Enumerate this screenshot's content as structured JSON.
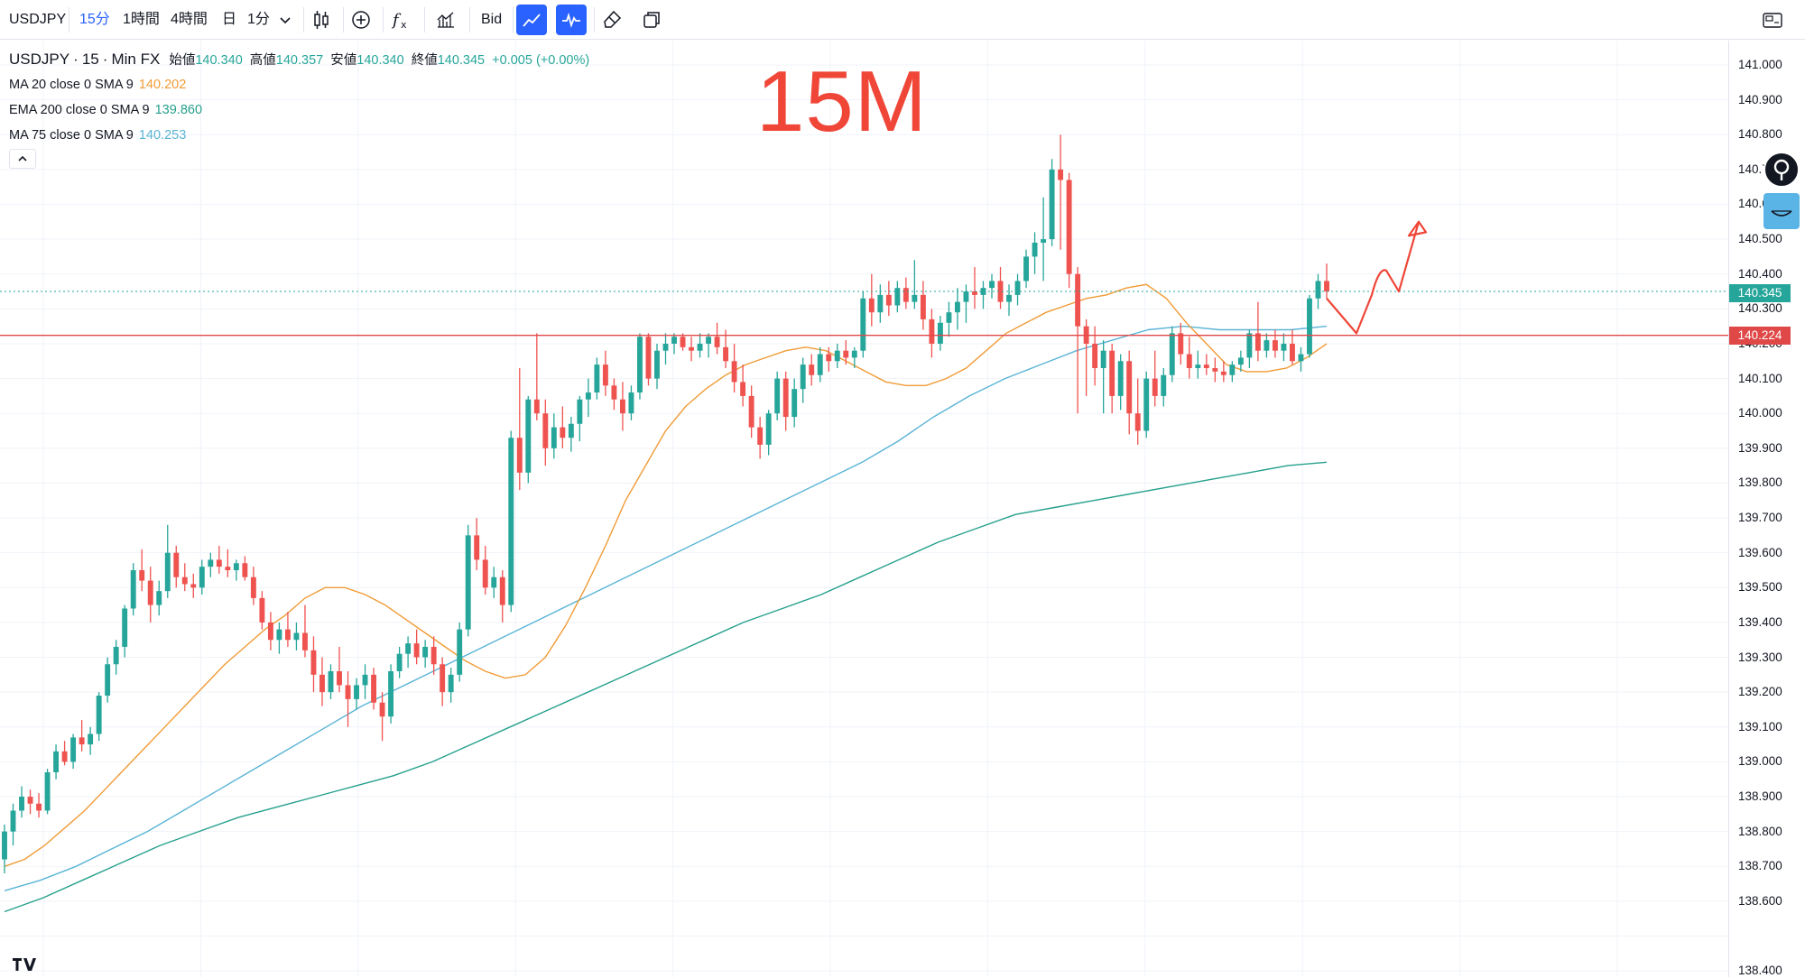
{
  "toolbar": {
    "symbol": "USDJPY",
    "intervals": [
      "15分",
      "1時間",
      "4時間",
      "日",
      "1分"
    ],
    "active_interval": "15分",
    "bid_label": "Bid"
  },
  "legend": {
    "symbol": "USDJPY",
    "timeframe": "15",
    "source": "Min FX",
    "open_label": "始値",
    "open": "140.340",
    "high_label": "高値",
    "high": "140.357",
    "low_label": "安値",
    "low": "140.340",
    "close_label": "終値",
    "close": "140.345",
    "change": "+0.005 (+0.00%)",
    "indicators": [
      {
        "label": "MA 20 close 0 SMA 9",
        "value": "140.202",
        "color": "#f09b36"
      },
      {
        "label": "EMA 200 close 0 SMA 9",
        "value": "139.860",
        "color": "#26a08c"
      },
      {
        "label": "MA 75 close 0 SMA 9",
        "value": "140.253",
        "color": "#5ab4d6"
      }
    ]
  },
  "annotation": "15M",
  "price_axis": {
    "ticks": [
      "141.000",
      "140.900",
      "140.800",
      "140.700",
      "140.600",
      "140.500",
      "140.400",
      "140.300",
      "140.200",
      "140.100",
      "140.000",
      "139.900",
      "139.800",
      "139.700",
      "139.600",
      "139.500",
      "139.400",
      "139.300",
      "139.200",
      "139.100",
      "139.000",
      "138.900",
      "138.800",
      "138.700",
      "138.600",
      "138.400"
    ],
    "current_price": "140.345",
    "line_price": "140.224"
  },
  "colors": {
    "up": "#26a69a",
    "down": "#ef5350",
    "ma20": "#f09b36",
    "ma75": "#5ab4d6",
    "ema200": "#26a08c",
    "hline": "#e04848",
    "annotation": "#ef4638",
    "accent": "#2962ff"
  },
  "chart_data": {
    "type": "candlestick",
    "symbol": "USDJPY",
    "interval": "15",
    "ylim": [
      138.4,
      141.05
    ],
    "horizontal_line": 140.224,
    "candles": [
      [
        138.72,
        138.82,
        138.68,
        138.8
      ],
      [
        138.8,
        138.88,
        138.76,
        138.86
      ],
      [
        138.86,
        138.93,
        138.84,
        138.9
      ],
      [
        138.9,
        138.92,
        138.85,
        138.88
      ],
      [
        138.88,
        138.91,
        138.84,
        138.86
      ],
      [
        138.86,
        138.98,
        138.85,
        138.97
      ],
      [
        138.97,
        139.05,
        138.95,
        139.03
      ],
      [
        139.03,
        139.06,
        138.99,
        139.0
      ],
      [
        139.0,
        139.08,
        138.98,
        139.07
      ],
      [
        139.07,
        139.12,
        139.03,
        139.05
      ],
      [
        139.05,
        139.1,
        139.02,
        139.08
      ],
      [
        139.08,
        139.2,
        139.06,
        139.19
      ],
      [
        139.19,
        139.3,
        139.17,
        139.28
      ],
      [
        139.28,
        139.35,
        139.25,
        139.33
      ],
      [
        139.33,
        139.45,
        139.3,
        139.44
      ],
      [
        139.44,
        139.57,
        139.42,
        139.55
      ],
      [
        139.55,
        139.61,
        139.49,
        139.52
      ],
      [
        139.52,
        139.56,
        139.4,
        139.45
      ],
      [
        139.45,
        139.52,
        139.42,
        139.49
      ],
      [
        139.49,
        139.68,
        139.47,
        139.6
      ],
      [
        139.6,
        139.62,
        139.5,
        139.53
      ],
      [
        139.53,
        139.57,
        139.49,
        139.51
      ],
      [
        139.51,
        139.54,
        139.47,
        139.5
      ],
      [
        139.5,
        139.58,
        139.48,
        139.56
      ],
      [
        139.56,
        139.6,
        139.53,
        139.58
      ],
      [
        139.58,
        139.62,
        139.54,
        139.56
      ],
      [
        139.56,
        139.61,
        139.53,
        139.55
      ],
      [
        139.55,
        139.58,
        139.52,
        139.57
      ],
      [
        139.57,
        139.59,
        139.52,
        139.53
      ],
      [
        139.53,
        139.56,
        139.45,
        139.47
      ],
      [
        139.47,
        139.49,
        139.38,
        139.4
      ],
      [
        139.4,
        139.43,
        139.32,
        139.35
      ],
      [
        139.35,
        139.4,
        139.31,
        139.38
      ],
      [
        139.38,
        139.43,
        139.33,
        139.35
      ],
      [
        139.35,
        139.4,
        139.32,
        139.37
      ],
      [
        139.37,
        139.45,
        139.3,
        139.32
      ],
      [
        139.32,
        139.36,
        139.2,
        139.25
      ],
      [
        139.25,
        139.3,
        139.16,
        139.2
      ],
      [
        139.2,
        139.28,
        139.18,
        139.26
      ],
      [
        139.26,
        139.33,
        139.2,
        139.22
      ],
      [
        139.22,
        139.26,
        139.1,
        139.18
      ],
      [
        139.18,
        139.24,
        139.15,
        139.22
      ],
      [
        139.22,
        139.28,
        139.18,
        139.25
      ],
      [
        139.25,
        139.27,
        139.15,
        139.17
      ],
      [
        139.17,
        139.2,
        139.06,
        139.13
      ],
      [
        139.13,
        139.28,
        139.11,
        139.26
      ],
      [
        139.26,
        139.33,
        139.24,
        139.31
      ],
      [
        139.31,
        139.36,
        139.27,
        139.34
      ],
      [
        139.34,
        139.38,
        139.28,
        139.3
      ],
      [
        139.3,
        139.35,
        139.27,
        139.33
      ],
      [
        139.33,
        139.36,
        139.25,
        139.28
      ],
      [
        139.28,
        139.3,
        139.16,
        139.2
      ],
      [
        139.2,
        139.27,
        139.17,
        139.25
      ],
      [
        139.25,
        139.4,
        139.23,
        139.38
      ],
      [
        139.38,
        139.68,
        139.36,
        139.65
      ],
      [
        139.65,
        139.7,
        139.55,
        139.58
      ],
      [
        139.58,
        139.62,
        139.48,
        139.5
      ],
      [
        139.5,
        139.56,
        139.47,
        139.53
      ],
      [
        139.53,
        139.55,
        139.4,
        139.45
      ],
      [
        139.45,
        139.95,
        139.43,
        139.93
      ],
      [
        139.93,
        140.13,
        139.78,
        139.83
      ],
      [
        139.83,
        140.05,
        139.8,
        140.04
      ],
      [
        140.04,
        140.23,
        139.98,
        140.0
      ],
      [
        140.0,
        140.04,
        139.85,
        139.9
      ],
      [
        139.9,
        140.0,
        139.87,
        139.96
      ],
      [
        139.96,
        140.02,
        139.9,
        139.93
      ],
      [
        139.93,
        139.99,
        139.89,
        139.97
      ],
      [
        139.97,
        140.05,
        139.92,
        140.04
      ],
      [
        140.04,
        140.1,
        139.99,
        140.06
      ],
      [
        140.06,
        140.16,
        140.04,
        140.14
      ],
      [
        140.14,
        140.18,
        140.05,
        140.08
      ],
      [
        140.08,
        140.1,
        140.01,
        140.04
      ],
      [
        140.04,
        140.09,
        139.95,
        140.0
      ],
      [
        140.0,
        140.08,
        139.98,
        140.06
      ],
      [
        140.06,
        140.23,
        140.04,
        140.22
      ],
      [
        140.22,
        140.23,
        140.08,
        140.1
      ],
      [
        140.1,
        140.2,
        140.07,
        140.18
      ],
      [
        140.18,
        140.23,
        140.14,
        140.2
      ],
      [
        140.2,
        140.23,
        140.17,
        140.22
      ],
      [
        140.22,
        140.23,
        140.18,
        140.19
      ],
      [
        140.19,
        140.22,
        140.15,
        140.18
      ],
      [
        140.18,
        140.23,
        140.16,
        140.2
      ],
      [
        140.2,
        140.23,
        140.16,
        140.22
      ],
      [
        140.22,
        140.26,
        140.17,
        140.19
      ],
      [
        140.19,
        140.24,
        140.13,
        140.15
      ],
      [
        140.15,
        140.2,
        140.06,
        140.09
      ],
      [
        140.09,
        140.14,
        140.02,
        140.05
      ],
      [
        140.05,
        140.08,
        139.93,
        139.96
      ],
      [
        139.96,
        139.99,
        139.87,
        139.91
      ],
      [
        139.91,
        140.01,
        139.88,
        140.0
      ],
      [
        140.0,
        140.12,
        139.98,
        140.1
      ],
      [
        140.1,
        140.12,
        139.95,
        139.99
      ],
      [
        139.99,
        140.1,
        139.96,
        140.07
      ],
      [
        140.07,
        140.16,
        140.03,
        140.14
      ],
      [
        140.14,
        140.17,
        140.08,
        140.11
      ],
      [
        140.11,
        140.19,
        140.09,
        140.17
      ],
      [
        140.17,
        140.19,
        140.12,
        140.15
      ],
      [
        140.15,
        140.2,
        140.13,
        140.18
      ],
      [
        140.18,
        140.21,
        140.14,
        140.16
      ],
      [
        140.16,
        140.19,
        140.13,
        140.18
      ],
      [
        140.18,
        140.35,
        140.16,
        140.33
      ],
      [
        140.33,
        140.4,
        140.25,
        140.29
      ],
      [
        140.29,
        140.37,
        140.26,
        140.34
      ],
      [
        140.34,
        140.38,
        140.28,
        140.31
      ],
      [
        140.31,
        140.38,
        140.29,
        140.36
      ],
      [
        140.36,
        140.39,
        140.3,
        140.32
      ],
      [
        140.32,
        140.44,
        140.3,
        140.34
      ],
      [
        140.34,
        140.38,
        140.24,
        140.27
      ],
      [
        140.27,
        140.3,
        140.16,
        140.2
      ],
      [
        140.2,
        140.28,
        140.18,
        140.26
      ],
      [
        140.26,
        140.32,
        140.22,
        140.29
      ],
      [
        140.29,
        140.36,
        140.24,
        140.32
      ],
      [
        140.32,
        140.37,
        140.26,
        140.35
      ],
      [
        140.35,
        140.42,
        140.3,
        140.34
      ],
      [
        140.34,
        140.38,
        140.3,
        140.36
      ],
      [
        140.36,
        140.4,
        140.33,
        140.38
      ],
      [
        140.38,
        140.42,
        140.3,
        140.32
      ],
      [
        140.32,
        140.37,
        140.28,
        140.34
      ],
      [
        140.34,
        140.4,
        140.31,
        140.38
      ],
      [
        140.38,
        140.47,
        140.36,
        140.45
      ],
      [
        140.45,
        140.52,
        140.4,
        140.49
      ],
      [
        140.49,
        140.62,
        140.38,
        140.5
      ],
      [
        140.5,
        140.73,
        140.48,
        140.7
      ],
      [
        140.7,
        140.8,
        140.47,
        140.67
      ],
      [
        140.67,
        140.69,
        140.36,
        140.4
      ],
      [
        140.4,
        140.42,
        140.0,
        140.25
      ],
      [
        140.25,
        140.27,
        140.05,
        140.2
      ],
      [
        140.2,
        140.25,
        140.08,
        140.13
      ],
      [
        140.13,
        140.21,
        140.0,
        140.18
      ],
      [
        140.18,
        140.2,
        140.0,
        140.05
      ],
      [
        140.05,
        140.17,
        140.01,
        140.15
      ],
      [
        140.15,
        140.18,
        139.94,
        140.0
      ],
      [
        140.0,
        140.1,
        139.91,
        139.95
      ],
      [
        139.95,
        140.12,
        139.93,
        140.1
      ],
      [
        140.1,
        140.18,
        140.02,
        140.05
      ],
      [
        140.05,
        140.13,
        140.02,
        140.11
      ],
      [
        140.11,
        140.25,
        140.09,
        140.23
      ],
      [
        140.23,
        140.26,
        140.14,
        140.17
      ],
      [
        140.17,
        140.22,
        140.1,
        140.13
      ],
      [
        140.13,
        140.18,
        140.1,
        140.14
      ],
      [
        140.14,
        140.17,
        140.11,
        140.13
      ],
      [
        140.13,
        140.16,
        140.09,
        140.12
      ],
      [
        140.12,
        140.15,
        140.09,
        140.11
      ],
      [
        140.11,
        140.15,
        140.09,
        140.14
      ],
      [
        140.14,
        140.18,
        140.12,
        140.16
      ],
      [
        140.16,
        140.24,
        140.13,
        140.23
      ],
      [
        140.23,
        140.32,
        140.15,
        140.18
      ],
      [
        140.18,
        140.23,
        140.16,
        140.21
      ],
      [
        140.21,
        140.24,
        140.16,
        140.18
      ],
      [
        140.18,
        140.23,
        140.15,
        140.2
      ],
      [
        140.2,
        140.24,
        140.14,
        140.15
      ],
      [
        140.15,
        140.19,
        140.12,
        140.17
      ],
      [
        140.17,
        140.34,
        140.16,
        140.33
      ],
      [
        140.33,
        140.4,
        140.3,
        140.38
      ],
      [
        140.38,
        140.43,
        140.33,
        140.35
      ]
    ],
    "ma20": [
      138.7,
      138.72,
      138.76,
      138.81,
      138.86,
      138.92,
      138.98,
      139.04,
      139.1,
      139.16,
      139.22,
      139.28,
      139.33,
      139.38,
      139.42,
      139.47,
      139.5,
      139.5,
      139.48,
      139.45,
      139.41,
      139.37,
      139.33,
      139.29,
      139.26,
      139.24,
      139.25,
      139.3,
      139.39,
      139.5,
      139.62,
      139.75,
      139.85,
      139.95,
      140.02,
      140.07,
      140.11,
      140.14,
      140.16,
      140.18,
      140.19,
      140.18,
      140.15,
      140.12,
      140.09,
      140.08,
      140.08,
      140.1,
      140.13,
      140.18,
      140.23,
      140.26,
      140.29,
      140.31,
      140.33,
      140.34,
      140.36,
      140.37,
      140.33,
      140.26,
      140.2,
      140.14,
      140.12,
      140.12,
      140.13,
      140.16,
      140.2
    ],
    "ma75": [
      138.63,
      138.66,
      138.7,
      138.75,
      138.8,
      138.86,
      138.92,
      138.98,
      139.04,
      139.1,
      139.16,
      139.21,
      139.26,
      139.31,
      139.36,
      139.41,
      139.46,
      139.51,
      139.56,
      139.61,
      139.66,
      139.71,
      139.76,
      139.81,
      139.86,
      139.92,
      139.99,
      140.05,
      140.1,
      140.14,
      140.18,
      140.21,
      140.24,
      140.25,
      140.24,
      140.24,
      140.24,
      140.25
    ],
    "ema200": [
      138.57,
      138.61,
      138.66,
      138.71,
      138.76,
      138.8,
      138.84,
      138.87,
      138.9,
      138.93,
      138.96,
      139.0,
      139.05,
      139.1,
      139.15,
      139.2,
      139.25,
      139.3,
      139.35,
      139.4,
      139.44,
      139.48,
      139.53,
      139.58,
      139.63,
      139.67,
      139.71,
      139.73,
      139.75,
      139.77,
      139.79,
      139.81,
      139.83,
      139.85,
      139.86
    ]
  }
}
